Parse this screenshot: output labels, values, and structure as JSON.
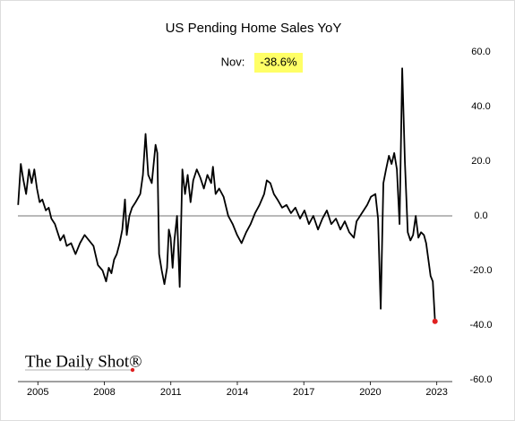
{
  "chart_data": {
    "type": "line",
    "title": "US Pending Home Sales YoY",
    "annotation": {
      "prefix": "Nov:",
      "text": "-38.6%"
    },
    "source": "The Daily Shot®",
    "x": [
      2004.11,
      2004.23,
      2004.35,
      2004.47,
      2004.6,
      2004.72,
      2004.84,
      2004.96,
      2005.08,
      2005.2,
      2005.36,
      2005.49,
      2005.61,
      2005.77,
      2005.89,
      2006.01,
      2006.17,
      2006.3,
      2006.5,
      2006.7,
      2006.9,
      2007.11,
      2007.31,
      2007.51,
      2007.71,
      2007.92,
      2008.08,
      2008.2,
      2008.32,
      2008.44,
      2008.56,
      2008.69,
      2008.81,
      2008.93,
      2009.01,
      2009.13,
      2009.25,
      2009.41,
      2009.62,
      2009.74,
      2009.86,
      2009.98,
      2010.14,
      2010.31,
      2010.39,
      2010.47,
      2010.59,
      2010.71,
      2010.83,
      2010.91,
      2010.99,
      2011.08,
      2011.16,
      2011.28,
      2011.4,
      2011.52,
      2011.64,
      2011.76,
      2011.89,
      2012.01,
      2012.17,
      2012.33,
      2012.49,
      2012.65,
      2012.82,
      2012.9,
      2013.02,
      2013.18,
      2013.38,
      2013.59,
      2013.79,
      2013.99,
      2014.19,
      2014.4,
      2014.6,
      2014.8,
      2015.0,
      2015.21,
      2015.33,
      2015.49,
      2015.65,
      2015.81,
      2016.02,
      2016.22,
      2016.42,
      2016.62,
      2016.83,
      2017.03,
      2017.23,
      2017.43,
      2017.64,
      2017.84,
      2018.04,
      2018.24,
      2018.45,
      2018.65,
      2018.85,
      2019.05,
      2019.26,
      2019.38,
      2019.54,
      2019.7,
      2019.86,
      2020.03,
      2020.23,
      2020.35,
      2020.47,
      2020.59,
      2020.71,
      2020.84,
      2020.96,
      2021.08,
      2021.2,
      2021.32,
      2021.44,
      2021.56,
      2021.69,
      2021.81,
      2021.93,
      2022.05,
      2022.17,
      2022.29,
      2022.42,
      2022.52,
      2022.62,
      2022.72,
      2022.82,
      2022.92
    ],
    "series": [
      {
        "name": "US Pending Home Sales YoY",
        "color": "#000000",
        "values": [
          4,
          19,
          13,
          8,
          17,
          12,
          17,
          10,
          5,
          6,
          2,
          3,
          -1,
          -3,
          -6,
          -9,
          -7,
          -11,
          -10,
          -14,
          -10,
          -7,
          -9,
          -11,
          -18,
          -20,
          -24,
          -19,
          -21,
          -16,
          -14,
          -10,
          -5,
          6,
          -7,
          0,
          3,
          5,
          8,
          15,
          30,
          15,
          12,
          26,
          23,
          -14,
          -20,
          -25,
          -19,
          -5,
          -8,
          -19,
          -9,
          0,
          -26,
          17,
          8,
          15,
          5,
          13,
          17,
          14,
          10,
          15,
          12,
          18,
          8,
          10,
          7,
          0,
          -3,
          -7,
          -10,
          -6,
          -3,
          1,
          4,
          8,
          13,
          12,
          8,
          6,
          3,
          4,
          1,
          3,
          -1,
          2,
          -3,
          0,
          -5,
          -1,
          2,
          -3,
          -1,
          -5,
          -2,
          -6,
          -8,
          -2,
          0,
          2,
          4,
          7,
          8,
          -1,
          -34,
          12,
          17,
          22,
          19,
          23,
          17,
          -3,
          54,
          20,
          -6,
          -9,
          -7,
          0,
          -8,
          -6,
          -7,
          -10,
          -16,
          -22,
          -24,
          -38.6
        ]
      }
    ],
    "last_point_color": "#e02020",
    "xlim": [
      2004.1,
      2023.7
    ],
    "xticks": [
      2005,
      2008,
      2011,
      2014,
      2017,
      2020,
      2023
    ],
    "ylim": [
      -60,
      60
    ],
    "yticks": [
      {
        "value": -60,
        "label": "-60.0"
      },
      {
        "value": -40,
        "label": "-40.0"
      },
      {
        "value": -20,
        "label": "-20.0"
      },
      {
        "value": 0,
        "label": "0.0"
      },
      {
        "value": 20,
        "label": "20.0"
      },
      {
        "value": 40,
        "label": "40.0"
      },
      {
        "value": 60,
        "label": "60.0"
      }
    ]
  }
}
